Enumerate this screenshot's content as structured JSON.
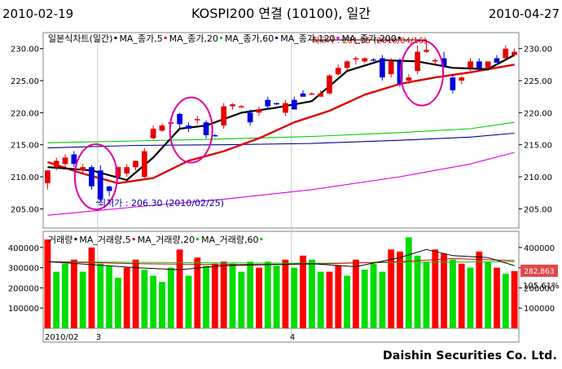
{
  "header": {
    "start_date": "2010-02-19",
    "title": "KOSPI200 연결 (10100), 일간",
    "end_date": "2010-04-27"
  },
  "footer": {
    "credit": "Daishin Securities Co. Ltd."
  },
  "price_panel": {
    "legend": [
      {
        "text": "일본식차트(일간)",
        "color": "#000000"
      },
      {
        "text": "MA_종가,5",
        "color": "#000000"
      },
      {
        "text": "MA_종가,20",
        "color": "#e00000"
      },
      {
        "text": "MA_종가,60",
        "color": "#00c000"
      },
      {
        "text": "MA_종가,120",
        "color": "#0000a0"
      },
      {
        "text": "MA_종가,200",
        "color": "#e000e0"
      }
    ],
    "annotations": {
      "high": "최고가 : 231.35 (2010/04/16)",
      "low": "최저가 : 206.30 (2010/02/25)"
    }
  },
  "volume_panel": {
    "legend": [
      {
        "text": "거래량",
        "color": "#000000"
      },
      {
        "text": "MA_거래량,5",
        "color": "#000000"
      },
      {
        "text": "MA_거래량,20",
        "color": "#e00000"
      },
      {
        "text": "MA_거래량,60",
        "color": "#00c000"
      }
    ],
    "current_value": "282,863",
    "current_ratio": "105.61%"
  },
  "x_axis": {
    "labels": [
      "2010/02",
      "3",
      "4"
    ]
  },
  "chart_data": [
    {
      "type": "candlestick",
      "title": "KOSPI200 연결 (10100), 일간",
      "ylim": [
        202,
        232.5
      ],
      "y_ticks": [
        205,
        210,
        215,
        220,
        225,
        230
      ],
      "colors": {
        "up": "#e60000",
        "down": "#0000dd"
      },
      "candles": [
        {
          "open": 209.0,
          "high": 211.0,
          "low": 208.0,
          "close": 211.0
        },
        {
          "open": 211.5,
          "high": 213.0,
          "low": 211.0,
          "close": 212.5
        },
        {
          "open": 212.0,
          "high": 213.5,
          "low": 211.5,
          "close": 213.0
        },
        {
          "open": 213.5,
          "high": 214.0,
          "low": 211.5,
          "close": 212.0
        },
        {
          "open": 211.0,
          "high": 212.0,
          "low": 210.5,
          "close": 211.5
        },
        {
          "open": 211.5,
          "high": 211.8,
          "low": 208.0,
          "close": 208.5
        },
        {
          "open": 211.0,
          "high": 211.8,
          "low": 206.3,
          "close": 206.5
        },
        {
          "open": 208.5,
          "high": 208.6,
          "low": 207.0,
          "close": 207.8
        },
        {
          "open": 210.0,
          "high": 211.6,
          "low": 209.6,
          "close": 211.5
        },
        {
          "open": 210.5,
          "high": 212.0,
          "low": 210.0,
          "close": 211.5
        },
        {
          "open": 211.5,
          "high": 212.5,
          "low": 211.0,
          "close": 212.5
        },
        {
          "open": 210.0,
          "high": 214.5,
          "low": 209.8,
          "close": 214.0
        },
        {
          "open": 216.0,
          "high": 218.0,
          "low": 215.8,
          "close": 217.5
        },
        {
          "open": 217.2,
          "high": 218.3,
          "low": 217.0,
          "close": 218.0
        },
        {
          "open": 218.3,
          "high": 219.0,
          "low": 218.0,
          "close": 218.5
        },
        {
          "open": 219.8,
          "high": 220.0,
          "low": 217.5,
          "close": 218.2
        },
        {
          "open": 218.0,
          "high": 218.5,
          "low": 217.0,
          "close": 217.5
        },
        {
          "open": 219.0,
          "high": 219.5,
          "low": 218.3,
          "close": 219.0
        },
        {
          "open": 218.5,
          "high": 218.8,
          "low": 216.0,
          "close": 216.5
        },
        {
          "open": 216.5,
          "high": 216.7,
          "low": 216.3,
          "close": 216.4
        },
        {
          "open": 218.0,
          "high": 221.5,
          "low": 217.5,
          "close": 221.0
        },
        {
          "open": 221.0,
          "high": 221.5,
          "low": 220.5,
          "close": 221.3
        },
        {
          "open": 221.0,
          "high": 221.2,
          "low": 220.8,
          "close": 221.0
        },
        {
          "open": 220.0,
          "high": 220.5,
          "low": 218.0,
          "close": 218.5
        },
        {
          "open": 220.0,
          "high": 221.0,
          "low": 219.5,
          "close": 220.5
        },
        {
          "open": 222.0,
          "high": 222.5,
          "low": 220.5,
          "close": 221.0
        },
        {
          "open": 221.5,
          "high": 221.6,
          "low": 221.2,
          "close": 221.4
        },
        {
          "open": 220.0,
          "high": 222.0,
          "low": 219.5,
          "close": 221.5
        },
        {
          "open": 222.0,
          "high": 222.5,
          "low": 220.5,
          "close": 220.5
        },
        {
          "open": 223.0,
          "high": 223.5,
          "low": 222.5,
          "close": 222.5
        },
        {
          "open": 223.0,
          "high": 223.2,
          "low": 222.8,
          "close": 223.0
        },
        {
          "open": 222.5,
          "high": 223.5,
          "low": 222.5,
          "close": 223.0
        },
        {
          "open": 223.0,
          "high": 226.0,
          "low": 222.8,
          "close": 225.8
        },
        {
          "open": 226.0,
          "high": 227.5,
          "low": 225.8,
          "close": 227.0
        },
        {
          "open": 227.0,
          "high": 228.2,
          "low": 226.5,
          "close": 228.0
        },
        {
          "open": 228.5,
          "high": 228.8,
          "low": 227.5,
          "close": 228.5
        },
        {
          "open": 228.0,
          "high": 228.6,
          "low": 227.8,
          "close": 228.5
        },
        {
          "open": 228.3,
          "high": 228.5,
          "low": 228.0,
          "close": 228.2
        },
        {
          "open": 228.5,
          "high": 229.0,
          "low": 225.0,
          "close": 225.5
        },
        {
          "open": 226.0,
          "high": 228.5,
          "low": 225.5,
          "close": 228.0
        },
        {
          "open": 228.0,
          "high": 228.5,
          "low": 224.0,
          "close": 224.5
        },
        {
          "open": 225.0,
          "high": 226.0,
          "low": 224.5,
          "close": 225.5
        },
        {
          "open": 226.5,
          "high": 230.5,
          "low": 226.0,
          "close": 229.5
        },
        {
          "open": 229.5,
          "high": 231.35,
          "low": 229.3,
          "close": 229.8
        },
        {
          "open": 228.0,
          "high": 228.5,
          "low": 227.5,
          "close": 228.2
        },
        {
          "open": 228.5,
          "high": 229.5,
          "low": 227.0,
          "close": 227.2
        },
        {
          "open": 225.5,
          "high": 226.0,
          "low": 223.0,
          "close": 223.5
        },
        {
          "open": 225.0,
          "high": 225.7,
          "low": 224.5,
          "close": 225.5
        },
        {
          "open": 227.0,
          "high": 228.5,
          "low": 226.5,
          "close": 228.0
        },
        {
          "open": 228.0,
          "high": 228.5,
          "low": 226.5,
          "close": 227.0
        },
        {
          "open": 227.0,
          "high": 228.0,
          "low": 226.5,
          "close": 228.0
        },
        {
          "open": 228.5,
          "high": 229.0,
          "low": 227.8,
          "close": 227.8
        },
        {
          "open": 228.5,
          "high": 230.5,
          "low": 228.5,
          "close": 230.0
        },
        {
          "open": 229.0,
          "high": 230.0,
          "low": 228.8,
          "close": 229.5
        }
      ],
      "ma": [
        {
          "name": "MA_종가,5",
          "color": "#000000",
          "width": 2.2,
          "x": [
            0,
            5,
            9,
            12,
            15,
            18,
            22,
            26,
            30,
            34,
            38,
            42,
            46,
            50,
            53
          ],
          "y": [
            211.5,
            211.0,
            209.5,
            213.0,
            217.5,
            218.0,
            220.0,
            220.8,
            221.8,
            226.5,
            228.2,
            228.0,
            227.0,
            226.8,
            229.0
          ]
        },
        {
          "name": "MA_종가,20",
          "color": "#dd0000",
          "width": 2.4,
          "x": [
            0,
            4,
            8,
            12,
            16,
            20,
            24,
            28,
            32,
            36,
            40,
            44,
            48,
            53
          ],
          "y": [
            212.3,
            210.5,
            209.0,
            209.8,
            212.5,
            214.0,
            216.0,
            218.5,
            220.3,
            222.8,
            224.5,
            225.5,
            226.3,
            227.5
          ]
        },
        {
          "name": "MA_종가,60",
          "color": "#00cc00",
          "width": 1.1,
          "x": [
            0,
            10,
            20,
            30,
            40,
            48,
            53
          ],
          "y": [
            215.3,
            215.6,
            215.9,
            216.3,
            216.9,
            217.5,
            218.5
          ]
        },
        {
          "name": "MA_종가,120",
          "color": "#000099",
          "width": 1.1,
          "x": [
            0,
            10,
            20,
            30,
            40,
            48,
            53
          ],
          "y": [
            214.5,
            214.9,
            215.0,
            215.2,
            215.7,
            216.2,
            216.8
          ]
        },
        {
          "name": "MA_종가,200",
          "color": "#dd00dd",
          "width": 1.1,
          "x": [
            0,
            10,
            20,
            30,
            40,
            48,
            53
          ],
          "y": [
            204.0,
            205.3,
            206.5,
            208.0,
            210.0,
            212.0,
            213.8
          ]
        }
      ],
      "highlight_circles": [
        {
          "center_index": 5.5,
          "center_value": 210.0
        },
        {
          "center_index": 16.3,
          "center_value": 217.3
        },
        {
          "center_index": 42.5,
          "center_value": 226.2
        }
      ]
    },
    {
      "type": "bar",
      "title": "거래량",
      "ylim": [
        0,
        480000
      ],
      "y_ticks": [
        100000,
        200000,
        300000,
        400000
      ],
      "values": [
        440000,
        280000,
        320000,
        340000,
        280000,
        400000,
        320000,
        310000,
        250000,
        300000,
        340000,
        290000,
        260000,
        230000,
        300000,
        390000,
        260000,
        350000,
        310000,
        320000,
        330000,
        320000,
        280000,
        330000,
        300000,
        330000,
        310000,
        340000,
        300000,
        360000,
        340000,
        280000,
        280000,
        310000,
        260000,
        340000,
        290000,
        320000,
        280000,
        390000,
        380000,
        450000,
        360000,
        330000,
        390000,
        370000,
        340000,
        320000,
        300000,
        380000,
        330000,
        300000,
        270000,
        283000
      ],
      "up": [
        true,
        false,
        false,
        true,
        false,
        true,
        false,
        false,
        false,
        true,
        true,
        false,
        false,
        false,
        false,
        true,
        false,
        true,
        false,
        true,
        true,
        false,
        false,
        false,
        true,
        false,
        false,
        true,
        false,
        true,
        false,
        false,
        true,
        true,
        false,
        true,
        false,
        false,
        false,
        true,
        true,
        false,
        false,
        false,
        true,
        true,
        false,
        true,
        false,
        true,
        false,
        true,
        false,
        true
      ],
      "ma": [
        {
          "name": "MA_거래량,5",
          "color": "#000000",
          "x": [
            0,
            5,
            10,
            15,
            20,
            25,
            30,
            35,
            40,
            43,
            46,
            50,
            53
          ],
          "y": [
            330000,
            315000,
            300000,
            290000,
            310000,
            315000,
            320000,
            305000,
            350000,
            390000,
            360000,
            350000,
            310000
          ]
        },
        {
          "name": "MA_거래량,20",
          "color": "#dd0000",
          "x": [
            0,
            10,
            20,
            30,
            40,
            46,
            53
          ],
          "y": [
            330000,
            320000,
            315000,
            318000,
            330000,
            345000,
            335000
          ]
        },
        {
          "name": "MA_거래량,60",
          "color": "#00cc00",
          "x": [
            0,
            15,
            30,
            45,
            53
          ],
          "y": [
            330000,
            325000,
            322000,
            328000,
            330000
          ]
        }
      ]
    }
  ]
}
